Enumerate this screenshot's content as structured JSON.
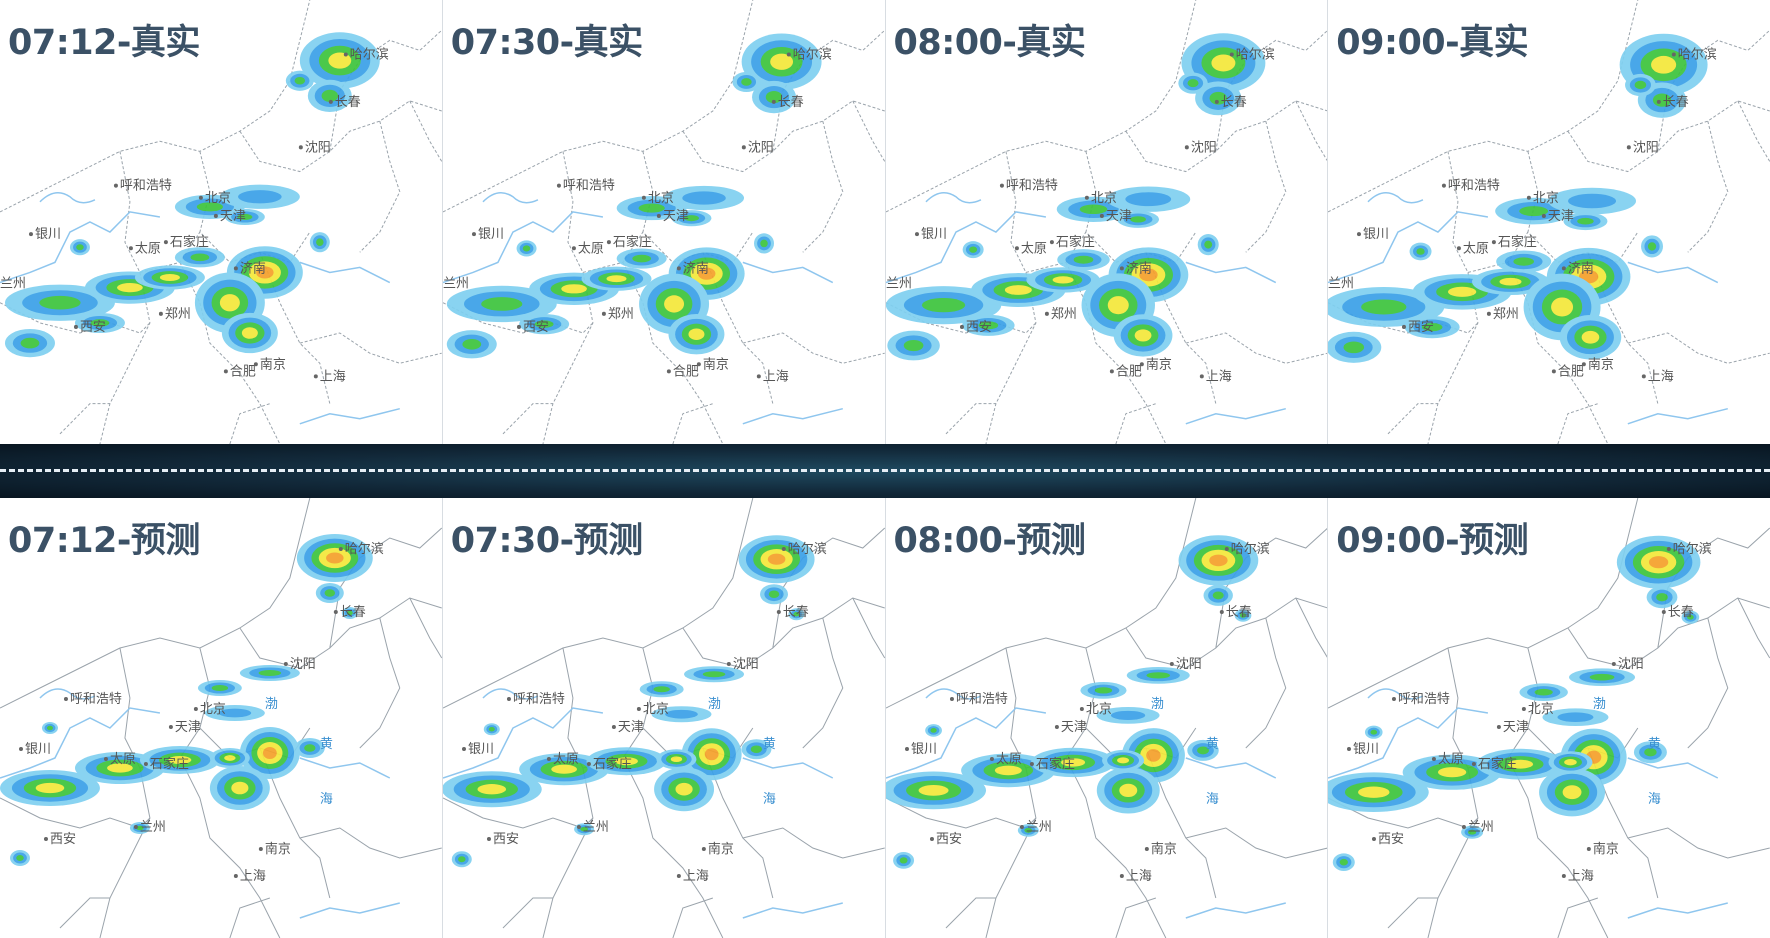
{
  "top_row": {
    "kind": "observed",
    "panels": [
      {
        "title": "07:12-真实",
        "intensity": 1.0,
        "shift": 0
      },
      {
        "title": "07:30-真实",
        "intensity": 1.0,
        "shift": 4
      },
      {
        "title": "08:00-真实",
        "intensity": 1.05,
        "shift": 8
      },
      {
        "title": "09:00-真实",
        "intensity": 1.1,
        "shift": 14
      }
    ]
  },
  "bottom_row": {
    "kind": "forecast",
    "panels": [
      {
        "title": "07:12-预测",
        "intensity": 1.0,
        "shift": 0
      },
      {
        "title": "07:30-预测",
        "intensity": 1.0,
        "shift": 4
      },
      {
        "title": "08:00-预测",
        "intensity": 1.05,
        "shift": 8
      },
      {
        "title": "09:00-预测",
        "intensity": 1.1,
        "shift": 14
      }
    ]
  },
  "city_labels_top": [
    "哈尔滨",
    "长春",
    "沈阳",
    "呼和浩特",
    "北京",
    "天津",
    "银川",
    "太原",
    "石家庄",
    "济南",
    "西安",
    "郑州",
    "合肥",
    "南京",
    "上海",
    "兰州"
  ],
  "city_labels_bottom": [
    "哈尔滨",
    "长春",
    "沈阳",
    "呼和浩特",
    "北京",
    "天津",
    "银川",
    "太原",
    "石家庄",
    "西安",
    "兰州",
    "南京",
    "上海"
  ],
  "sea_labels": [
    "渤",
    "黄",
    "海"
  ],
  "colors": {
    "radar_light_blue": "#7fd0f0",
    "radar_blue": "#3aa0e8",
    "radar_green": "#3cc43c",
    "radar_yellow": "#f4e83a",
    "radar_orange": "#f5a02a",
    "radar_red": "#e8322a",
    "title": "#3b5166",
    "divider": "#12293a"
  }
}
